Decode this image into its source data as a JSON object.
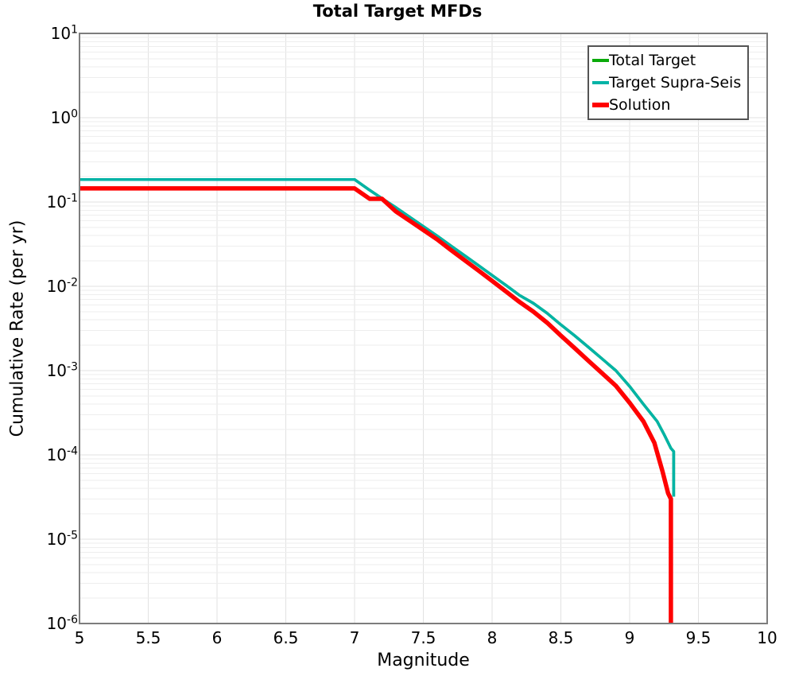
{
  "title": "Total Target MFDs",
  "axes": {
    "xlabel": "Magnitude",
    "ylabel": "Cumulative Rate (per yr)",
    "xlim": [
      5,
      10
    ],
    "xtick_labels": [
      "5",
      "5.5",
      "6",
      "6.5",
      "7",
      "7.5",
      "8",
      "8.5",
      "9",
      "9.5",
      "10"
    ],
    "xtick_values": [
      5,
      5.5,
      6,
      6.5,
      7,
      7.5,
      8,
      8.5,
      9,
      9.5,
      10
    ],
    "y_scale": "log",
    "ytick_base": "10",
    "ytick_exponents": [
      1,
      0,
      -1,
      -2,
      -3,
      -4,
      -5,
      -6
    ],
    "grid": true
  },
  "legend": {
    "position": "top-right",
    "items": [
      {
        "label": "Total Target",
        "color": "#0aaa0a",
        "thickness": 3.5
      },
      {
        "label": "Target Supra-Seis",
        "color": "#00b3a6",
        "thickness": 3.5
      },
      {
        "label": "Solution",
        "color": "#ff0000",
        "thickness": 5.5
      }
    ]
  },
  "colors": {
    "background": "#ffffff",
    "grid_minor": "#eeeeee",
    "grid_major": "#e2e2e2",
    "axis_border": "#7d7d7d",
    "text": "#000000"
  },
  "chart_data": {
    "type": "line",
    "title": "Total Target MFDs",
    "xlabel": "Magnitude",
    "ylabel": "Cumulative Rate (per yr)",
    "x_range": [
      5,
      10
    ],
    "y_range": [
      1e-06,
      10
    ],
    "y_scale": "log",
    "legend_position": "top-right",
    "grid": true,
    "note": "Total Target curve coincides with Target Supra-Seis and is hidden beneath it",
    "series": [
      {
        "name": "Total Target",
        "color": "#0aaa0a",
        "width": 3.5,
        "points": [
          [
            5.0,
            0.185
          ],
          [
            7.0,
            0.185
          ],
          [
            7.1,
            0.142
          ],
          [
            7.2,
            0.11
          ],
          [
            7.3,
            0.086
          ],
          [
            7.4,
            0.0665
          ],
          [
            7.5,
            0.0513
          ],
          [
            7.6,
            0.0396
          ],
          [
            7.7,
            0.0303
          ],
          [
            7.8,
            0.0232
          ],
          [
            7.9,
            0.0177
          ],
          [
            8.0,
            0.0135
          ],
          [
            8.1,
            0.0103
          ],
          [
            8.2,
            0.0078
          ],
          [
            8.3,
            0.0063
          ],
          [
            8.4,
            0.0048
          ],
          [
            8.5,
            0.0035
          ],
          [
            8.6,
            0.0026
          ],
          [
            8.7,
            0.0019
          ],
          [
            8.8,
            0.00138
          ],
          [
            8.9,
            0.001
          ],
          [
            9.0,
            0.00065
          ],
          [
            9.1,
            0.0004
          ],
          [
            9.2,
            0.00025
          ],
          [
            9.25,
            0.000175
          ],
          [
            9.3,
            0.00012
          ],
          [
            9.32,
            0.00011
          ],
          [
            9.32,
            3.2e-05
          ]
        ]
      },
      {
        "name": "Target Supra-Seis",
        "color": "#00b3a6",
        "width": 3.5,
        "points": [
          [
            5.0,
            0.185
          ],
          [
            7.0,
            0.185
          ],
          [
            7.1,
            0.142
          ],
          [
            7.2,
            0.11
          ],
          [
            7.3,
            0.086
          ],
          [
            7.4,
            0.0665
          ],
          [
            7.5,
            0.0513
          ],
          [
            7.6,
            0.0396
          ],
          [
            7.7,
            0.0303
          ],
          [
            7.8,
            0.0232
          ],
          [
            7.9,
            0.0177
          ],
          [
            8.0,
            0.0135
          ],
          [
            8.1,
            0.0103
          ],
          [
            8.2,
            0.0078
          ],
          [
            8.3,
            0.0063
          ],
          [
            8.4,
            0.0048
          ],
          [
            8.5,
            0.0035
          ],
          [
            8.6,
            0.0026
          ],
          [
            8.7,
            0.0019
          ],
          [
            8.8,
            0.00138
          ],
          [
            8.9,
            0.001
          ],
          [
            9.0,
            0.00065
          ],
          [
            9.1,
            0.0004
          ],
          [
            9.2,
            0.00025
          ],
          [
            9.25,
            0.000175
          ],
          [
            9.3,
            0.00012
          ],
          [
            9.32,
            0.00011
          ],
          [
            9.32,
            3.2e-05
          ]
        ]
      },
      {
        "name": "Solution",
        "color": "#ff0000",
        "width": 5.5,
        "points": [
          [
            5.0,
            0.145
          ],
          [
            7.0,
            0.145
          ],
          [
            7.11,
            0.109
          ],
          [
            7.2,
            0.109
          ],
          [
            7.3,
            0.0773
          ],
          [
            7.4,
            0.06
          ],
          [
            7.5,
            0.0465
          ],
          [
            7.6,
            0.036
          ],
          [
            7.7,
            0.027
          ],
          [
            7.8,
            0.0204
          ],
          [
            7.9,
            0.0154
          ],
          [
            8.0,
            0.0116
          ],
          [
            8.1,
            0.0087
          ],
          [
            8.2,
            0.0065
          ],
          [
            8.3,
            0.005
          ],
          [
            8.4,
            0.0037
          ],
          [
            8.5,
            0.0026
          ],
          [
            8.6,
            0.00185
          ],
          [
            8.7,
            0.00131
          ],
          [
            8.8,
            0.00093
          ],
          [
            8.9,
            0.00066
          ],
          [
            9.0,
            0.000415
          ],
          [
            9.1,
            0.00025
          ],
          [
            9.18,
            0.000139
          ],
          [
            9.24,
            6.3e-05
          ],
          [
            9.28,
            3.5e-05
          ],
          [
            9.3,
            3e-05
          ],
          [
            9.3,
            1e-06
          ]
        ]
      }
    ]
  }
}
